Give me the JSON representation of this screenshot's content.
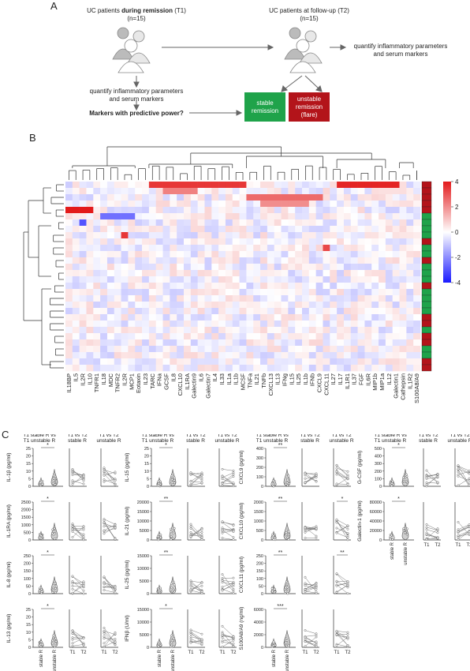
{
  "panel_a": {
    "letter": "A",
    "t1": {
      "line1": "UC patients ",
      "bold": "during remission",
      "line1b": " (T1)",
      "n": "(n=15)"
    },
    "t2": {
      "line1": "UC patients at follow-up (T2)",
      "n": "(n=15)"
    },
    "quantify_left": [
      "quantify inflammatory parameters",
      "and serum markers"
    ],
    "quantify_right": [
      "quantify inflammatory parameters",
      "and serum markers"
    ],
    "predictive": "Markers with predictive power?",
    "stable_box": {
      "text": [
        "stable",
        "remission"
      ],
      "color": "#1fa34a"
    },
    "unstable_box": {
      "text": [
        "unstable",
        "remission",
        "(flare)"
      ],
      "color": "#b3141a"
    }
  },
  "panel_b": {
    "letter": "B",
    "legend_ticks": [
      "4",
      "2",
      "0",
      "-2",
      "-4"
    ],
    "column_labels": [
      "IL18BP",
      "IL5",
      "IL2R",
      "IL10",
      "TNFR1",
      "IL18",
      "MDC",
      "TNFR2",
      "IL2R",
      "MCP1",
      "Eotaxin",
      "IL23",
      "TARC",
      "IFNa",
      "GCSF",
      "IL8",
      "CXCL10",
      "IL1RA",
      "Galectin9",
      "IL6",
      "Galectin7",
      "IL4",
      "IL33",
      "IL1a",
      "IL1b",
      "MCSF",
      "TNFa",
      "IL21",
      "TNFb",
      "CXCL13",
      "IL13",
      "IFNg",
      "IL15",
      "IL25",
      "IL1b",
      "IFNb",
      "CXCL9",
      "CXCL11",
      "IL27",
      "IL17",
      "IL1R1",
      "IL37",
      "FGF",
      "IL6R",
      "MIP1b",
      "MIP1a",
      "IL12",
      "Galectin1",
      "Cathepsin",
      "IL1R2",
      "S100A8/A9"
    ],
    "colorbar_values": [
      4,
      2,
      0,
      -2,
      -4
    ]
  },
  "panel_c": {
    "letter": "C",
    "headers": {
      "stable_vs_unstable": [
        "T1 stable R vs",
        "T1 unstable R"
      ],
      "t1t2_stable": [
        "T1 vs T2",
        "stable R"
      ],
      "t1t2_unstable": [
        "T1 vs T2",
        "unstable R"
      ]
    },
    "x_labels": {
      "stable": "stable R",
      "unstable": "unstable R",
      "t1": "T1",
      "t2": "T2"
    },
    "plots": [
      {
        "ylabel": "IL-1β  (pg/ml)",
        "ticks": [
          "25",
          "20",
          "15",
          "10",
          "5",
          "0"
        ],
        "sig": "*"
      },
      {
        "ylabel": "IL-1RA  (pg/ml)",
        "ticks": [
          "2500",
          "2000",
          "1500",
          "1000",
          "500",
          "0"
        ],
        "sig": "*"
      },
      {
        "ylabel": "IL-8  (pg/ml)",
        "ticks": [
          "250",
          "200",
          "150",
          "100",
          "50",
          "0"
        ],
        "sig": "*"
      },
      {
        "ylabel": "IL-13  (pg/ml)",
        "ticks": [
          "25",
          "20",
          "15",
          "10",
          "5",
          "0"
        ],
        "sig": "*"
      },
      {
        "ylabel": "IL-15  (pg/ml)",
        "ticks": [
          "25",
          "20",
          "15",
          "10",
          "5",
          "0"
        ],
        "sig": "*"
      },
      {
        "ylabel": "IL-21  (pg/ml)",
        "ticks": [
          "20000",
          "15000",
          "10000",
          "5000",
          "0"
        ],
        "sig": "**"
      },
      {
        "ylabel": "IL-25  (pg/ml)",
        "ticks": [
          "15000",
          "10000",
          "5000",
          "0"
        ],
        "sig": "**"
      },
      {
        "ylabel": "IFNβ  (U/ml)",
        "ticks": [
          "15000",
          "10000",
          "5000",
          "0"
        ],
        "sig": "*"
      },
      {
        "ylabel": "CXCL9  (pg/ml)",
        "ticks": [
          "400",
          "300",
          "200",
          "100",
          "0"
        ],
        "sig": "**"
      },
      {
        "ylabel": "CXCL10  (pg/ml)",
        "ticks": [
          "2000",
          "1500",
          "1000",
          "500",
          "0"
        ],
        "sig": "**"
      },
      {
        "ylabel": "CXCL11  (pg/ml)",
        "ticks": [
          "250",
          "200",
          "150",
          "100",
          "50",
          "0"
        ],
        "sig": "**"
      },
      {
        "ylabel": "S100A8/A9  (ng/ml)",
        "ticks": [
          "6000",
          "4000",
          "2000",
          "0"
        ],
        "sig": "***"
      },
      {
        "ylabel": "G-CSF  (pg/ml)",
        "ticks": [
          "500",
          "400",
          "300",
          "200",
          "100",
          "0"
        ],
        "sig": "*"
      },
      {
        "ylabel": "Galectin-1  (pg/ml)",
        "ticks": [
          "80000",
          "60000",
          "40000",
          "20000",
          "0"
        ],
        "sig": "*"
      }
    ],
    "t1t2_sig": {
      "CXCL10": "*",
      "CXCL11": "**"
    }
  }
}
